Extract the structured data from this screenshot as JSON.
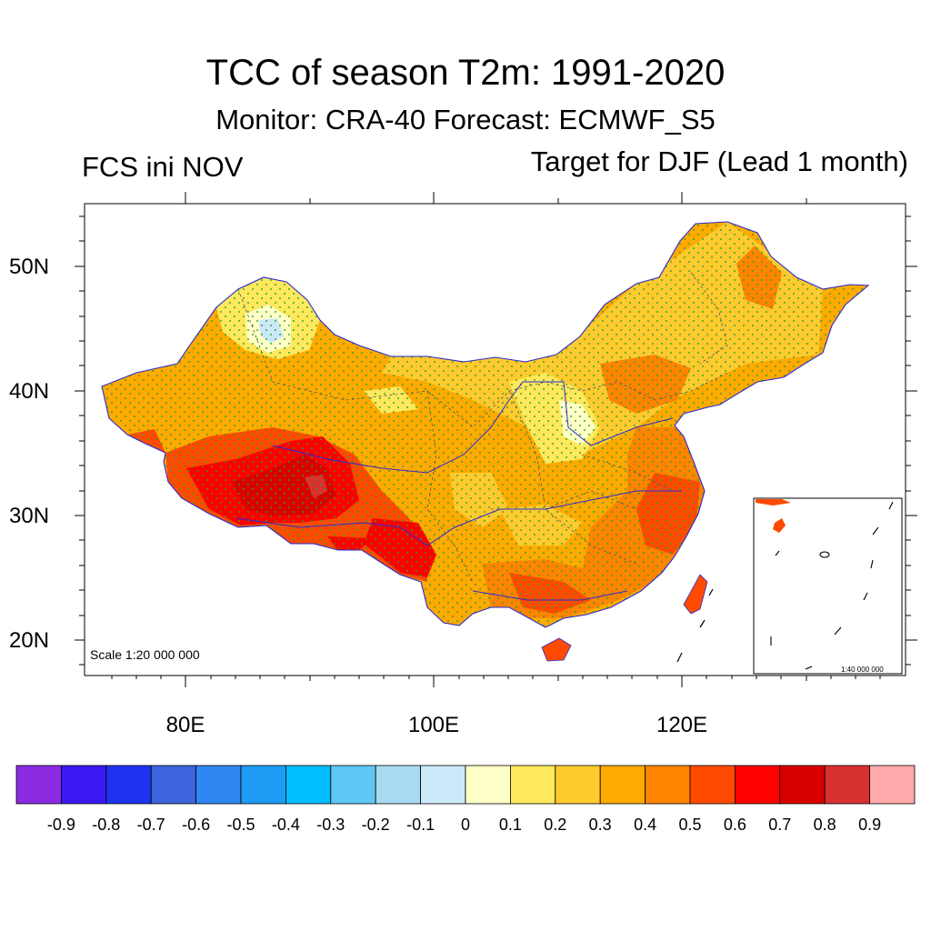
{
  "header": {
    "title": "TCC of season T2m: 1991-2020",
    "subtitle": "Monitor: CRA-40   Forecast: ECMWF_S5",
    "left_label": "FCS ini NOV",
    "right_label": "Target for DJF (Lead 1 month)"
  },
  "map": {
    "lat_labels": [
      "50N",
      "40N",
      "30N",
      "20N"
    ],
    "lon_labels": [
      "80E",
      "100E",
      "120E"
    ],
    "scale_main": "Scale 1:20 000 000",
    "scale_inset": "1:40 000 000",
    "region": "China"
  },
  "colorbar": {
    "colors": [
      "#8a2be2",
      "#3a19f5",
      "#1f32f0",
      "#3c64dc",
      "#2f86f0",
      "#1e9bf5",
      "#00bdff",
      "#5ec8f5",
      "#a8dbf2",
      "#cbe9f8",
      "#ffffc8",
      "#ffe85c",
      "#ffca2e",
      "#ffaa00",
      "#ff8400",
      "#ff4a00",
      "#ff0000",
      "#d90000",
      "#d93030",
      "#ffaaaa"
    ],
    "labels": [
      "-0.9",
      "-0.8",
      "-0.7",
      "-0.6",
      "-0.5",
      "-0.4",
      "-0.3",
      "-0.2",
      "-0.1",
      "0",
      "0.1",
      "0.2",
      "0.3",
      "0.4",
      "0.5",
      "0.6",
      "0.7",
      "0.8",
      "0.9"
    ]
  }
}
